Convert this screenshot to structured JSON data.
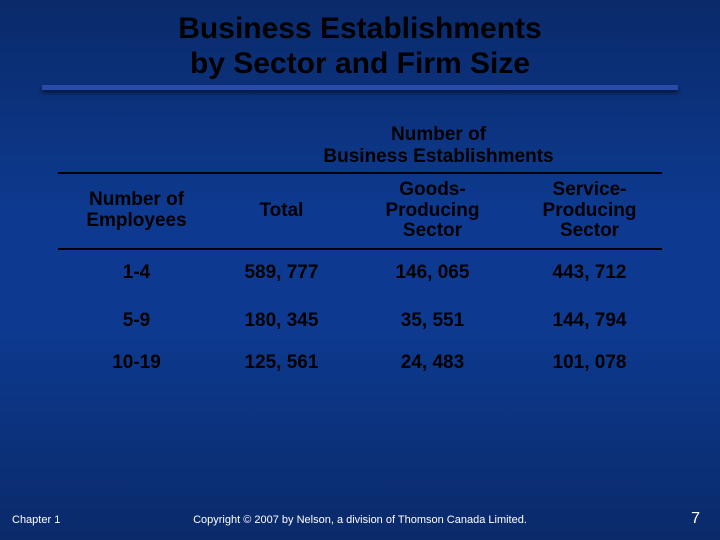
{
  "title": {
    "line1": "Business Establishments",
    "line2": "by Sector and Firm Size"
  },
  "table": {
    "super_header": "Number of\nBusiness Establishments",
    "columns": [
      "Number of\nEmployees",
      "Total",
      "Goods-\nProducing\nSector",
      "Service-\nProducing\nSector"
    ],
    "rows": [
      {
        "label": "1-4",
        "total": "589, 777",
        "goods": "146, 065",
        "service": "443, 712"
      },
      {
        "label": "5-9",
        "total": "180, 345",
        "goods": "35, 551",
        "service": "144, 794"
      },
      {
        "label": "10-19",
        "total": "125, 561",
        "goods": "24, 483",
        "service": "101, 078"
      }
    ]
  },
  "footer": {
    "chapter": "Chapter 1",
    "copyright": "Copyright © 2007 by Nelson, a division of Thomson Canada Limited.",
    "page": "7"
  },
  "colors": {
    "bg_top": "#0a2a6a",
    "bg_mid": "#0d3a90",
    "underline": "#2a4aa8",
    "text_title": "#000000",
    "text_table": "#000000",
    "text_footer": "#ffffff",
    "rule": "#000000"
  }
}
